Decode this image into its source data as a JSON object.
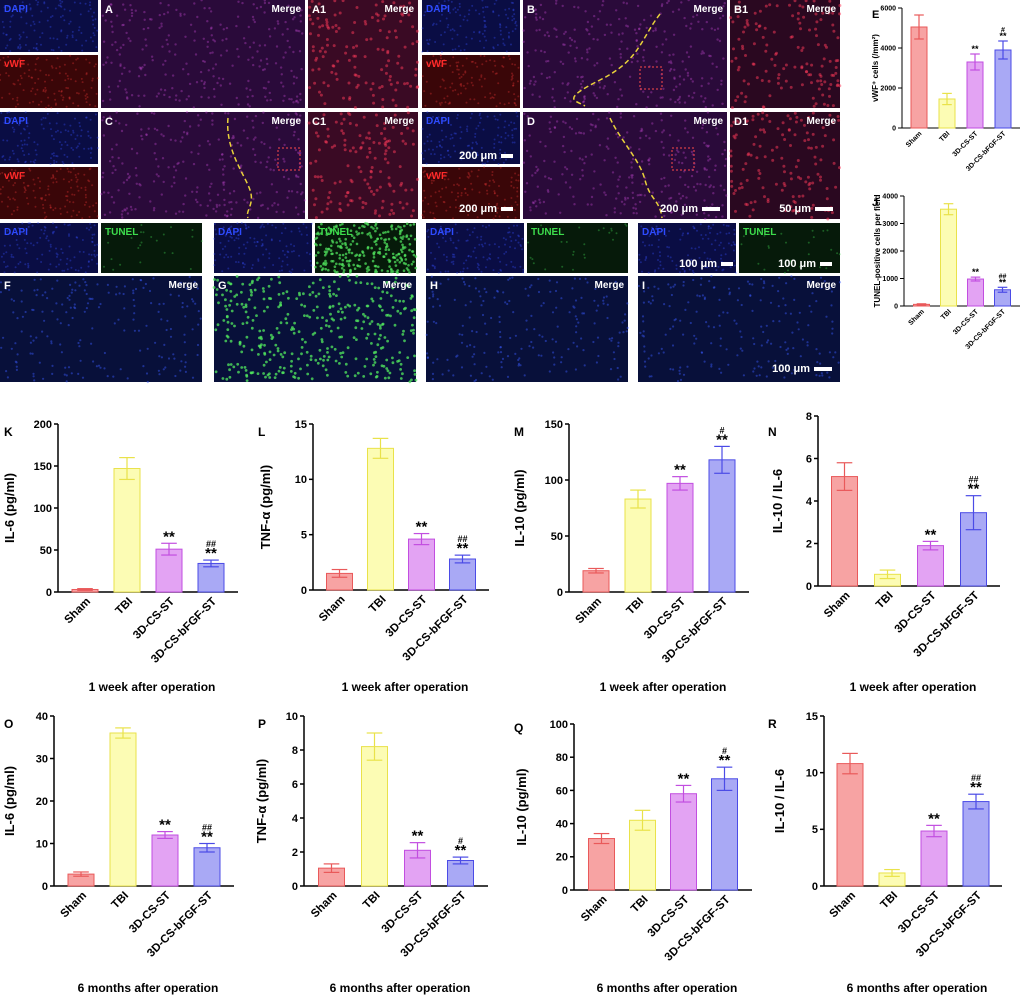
{
  "micrographs": {
    "colors": {
      "dapi_bg": "#0a0d44",
      "dapi_txt": "#2e4bff",
      "vwf_bg": "#3a0608",
      "vwf_txt": "#ff2a2a",
      "tunel_bg": "#061a0a",
      "tunel_txt": "#3ddc4c",
      "merge_bg": "#2a0a3a",
      "merge_txt": "#ffffff",
      "boundary": "#e9d23a"
    },
    "labels": {
      "dapi": "DAPI",
      "vwf": "vWF",
      "tunel": "TUNEL",
      "merge": "Merge",
      "A": "A",
      "A1": "A1",
      "B": "B",
      "B1": "B1",
      "C": "C",
      "C1": "C1",
      "D": "D",
      "D1": "D1",
      "F": "F",
      "G": "G",
      "H": "H",
      "I": "I"
    },
    "scale_bars": {
      "s200": "200 μm",
      "s50": "50 μm",
      "s100": "100 μm"
    }
  },
  "chart_data": [
    {
      "id": "E",
      "type": "bar",
      "categories": [
        "Sham",
        "TBI",
        "3D-CS-ST",
        "3D-CS-bFGF-ST"
      ],
      "values": [
        5050,
        1450,
        3300,
        3900
      ],
      "errors": [
        600,
        280,
        400,
        450
      ],
      "ylabel": "vWF⁺ cells (/mm²)",
      "ylim": [
        0,
        6000
      ],
      "yticks": [
        0,
        2000,
        4000,
        6000
      ],
      "sig_star": [
        "",
        "",
        "**",
        "**"
      ],
      "sig_hash": [
        "",
        "",
        "",
        "#"
      ],
      "xlabel": ""
    },
    {
      "id": "J",
      "type": "bar",
      "categories": [
        "Sham",
        "TBI",
        "3D-CS-ST",
        "3D-CS-bFGF-ST"
      ],
      "values": [
        60,
        3520,
        980,
        590
      ],
      "errors": [
        20,
        200,
        70,
        90
      ],
      "ylabel": "TUNEL-positive cells per field",
      "ylim": [
        0,
        4000
      ],
      "yticks": [
        0,
        1000,
        2000,
        3000,
        4000
      ],
      "sig_star": [
        "",
        "",
        "**",
        "**"
      ],
      "sig_hash": [
        "",
        "",
        "",
        "##"
      ],
      "xlabel": ""
    },
    {
      "id": "K",
      "type": "bar",
      "categories": [
        "Sham",
        "TBI",
        "3D-CS-ST",
        "3D-CS-bFGF-ST"
      ],
      "values": [
        3,
        147,
        51,
        34
      ],
      "errors": [
        1,
        13,
        7,
        4
      ],
      "ylabel": "IL-6 (pg/ml)",
      "ylim": [
        0,
        200
      ],
      "yticks": [
        0,
        50,
        100,
        150,
        200
      ],
      "sig_star": [
        "",
        "",
        "**",
        "**"
      ],
      "sig_hash": [
        "",
        "",
        "",
        "##"
      ],
      "xlabel": "1 week after operation"
    },
    {
      "id": "L",
      "type": "bar",
      "categories": [
        "Sham",
        "TBI",
        "3D-CS-ST",
        "3D-CS-bFGF-ST"
      ],
      "values": [
        1.5,
        12.8,
        4.6,
        2.8
      ],
      "errors": [
        0.35,
        0.9,
        0.5,
        0.35
      ],
      "ylabel": "TNF-α (pg/ml)",
      "ylim": [
        0,
        15
      ],
      "yticks": [
        0,
        5,
        10,
        15
      ],
      "sig_star": [
        "",
        "",
        "**",
        "**"
      ],
      "sig_hash": [
        "",
        "",
        "",
        "##"
      ],
      "xlabel": "1 week after operation"
    },
    {
      "id": "M",
      "type": "bar",
      "categories": [
        "Sham",
        "TBI",
        "3D-CS-ST",
        "3D-CS-bFGF-ST"
      ],
      "values": [
        19,
        83,
        97,
        118
      ],
      "errors": [
        2,
        8,
        6,
        12
      ],
      "ylabel": "IL-10 (pg/ml)",
      "ylim": [
        0,
        150
      ],
      "yticks": [
        0,
        50,
        100,
        150
      ],
      "sig_star": [
        "",
        "",
        "**",
        "**"
      ],
      "sig_hash": [
        "",
        "",
        "",
        "#"
      ],
      "xlabel": "1 week after operation"
    },
    {
      "id": "N",
      "type": "bar",
      "categories": [
        "Sham",
        "TBI",
        "3D-CS-ST",
        "3D-CS-bFGF-ST"
      ],
      "values": [
        5.15,
        0.55,
        1.9,
        3.45
      ],
      "errors": [
        0.65,
        0.2,
        0.2,
        0.8
      ],
      "ylabel": "IL-10 / IL-6",
      "ylim": [
        0,
        8
      ],
      "yticks": [
        0,
        2,
        4,
        6,
        8
      ],
      "sig_star": [
        "",
        "",
        "**",
        "**"
      ],
      "sig_hash": [
        "",
        "",
        "",
        "##"
      ],
      "xlabel": "1 week after operation"
    },
    {
      "id": "O",
      "type": "bar",
      "categories": [
        "Sham",
        "TBI",
        "3D-CS-ST",
        "3D-CS-bFGF-ST"
      ],
      "values": [
        2.8,
        36,
        12,
        9
      ],
      "errors": [
        0.5,
        1.2,
        0.8,
        1
      ],
      "ylabel": "IL-6 (pg/ml)",
      "ylim": [
        0,
        40
      ],
      "yticks": [
        0,
        10,
        20,
        30,
        40
      ],
      "sig_star": [
        "",
        "",
        "**",
        "**"
      ],
      "sig_hash": [
        "",
        "",
        "",
        "##"
      ],
      "xlabel": "6 months after operation"
    },
    {
      "id": "P",
      "type": "bar",
      "categories": [
        "Sham",
        "TBI",
        "3D-CS-ST",
        "3D-CS-bFGF-ST"
      ],
      "values": [
        1.05,
        8.2,
        2.1,
        1.5
      ],
      "errors": [
        0.25,
        0.8,
        0.45,
        0.2
      ],
      "ylabel": "TNF-α (pg/ml)",
      "ylim": [
        0,
        10
      ],
      "yticks": [
        0,
        2,
        4,
        6,
        8,
        10
      ],
      "sig_star": [
        "",
        "",
        "**",
        "**"
      ],
      "sig_hash": [
        "",
        "",
        "",
        "#"
      ],
      "xlabel": "6 months after operation"
    },
    {
      "id": "Q",
      "type": "bar",
      "categories": [
        "Sham",
        "TBI",
        "3D-CS-ST",
        "3D-CS-bFGF-ST"
      ],
      "values": [
        31,
        42,
        58,
        67
      ],
      "errors": [
        3,
        6,
        5,
        7
      ],
      "ylabel": "IL-10 (pg/ml)",
      "ylim": [
        0,
        100
      ],
      "yticks": [
        0,
        20,
        40,
        60,
        80,
        100
      ],
      "sig_star": [
        "",
        "",
        "**",
        "**"
      ],
      "sig_hash": [
        "",
        "",
        "",
        "#"
      ],
      "xlabel": "6 months after operation"
    },
    {
      "id": "R",
      "type": "bar",
      "categories": [
        "Sham",
        "TBI",
        "3D-CS-ST",
        "3D-CS-bFGF-ST"
      ],
      "values": [
        10.8,
        1.15,
        4.85,
        7.45
      ],
      "errors": [
        0.9,
        0.3,
        0.5,
        0.65
      ],
      "ylabel": "IL-10 / IL-6",
      "ylim": [
        0,
        15
      ],
      "yticks": [
        0,
        5,
        10,
        15
      ],
      "sig_star": [
        "",
        "",
        "**",
        "**"
      ],
      "sig_hash": [
        "",
        "",
        "",
        "##"
      ],
      "xlabel": "6 months after operation"
    }
  ],
  "bar_colors": {
    "fill": [
      "#f7a3a3",
      "#fcfcb4",
      "#e3a3f3",
      "#a9a9f5"
    ],
    "stroke": [
      "#e9595a",
      "#e9e24a",
      "#c24ee0",
      "#4b4be6"
    ]
  }
}
